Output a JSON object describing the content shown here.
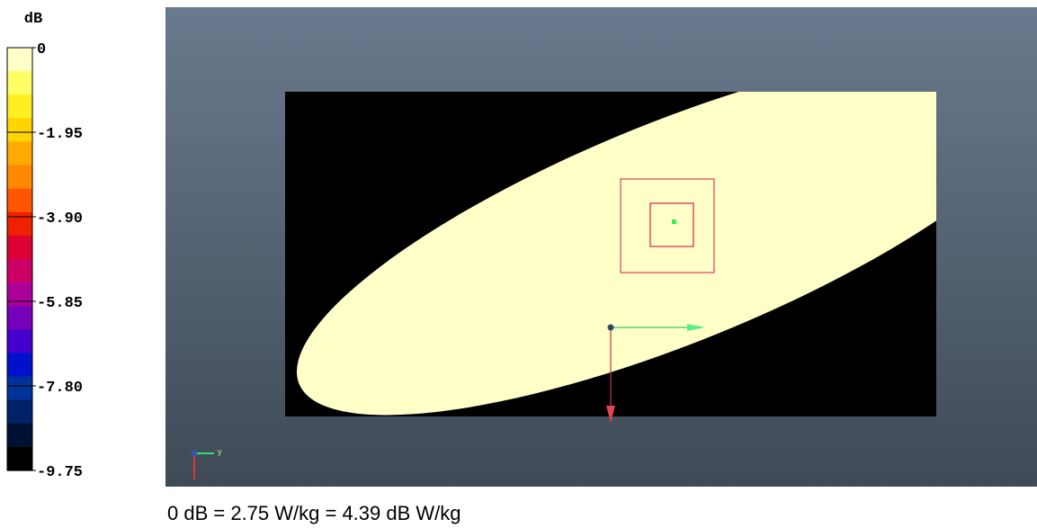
{
  "colorbar": {
    "unit_label": "dB",
    "tick_labels": [
      "0",
      "-1.95",
      "-3.90",
      "-5.85",
      "-7.80",
      "-9.75"
    ],
    "tick_values": [
      0,
      -1.95,
      -3.9,
      -5.85,
      -7.8,
      -9.75
    ],
    "colors_top_to_bottom": [
      "#ffffc8",
      "#ffff64",
      "#ffee22",
      "#ffd400",
      "#ffaa00",
      "#ff8800",
      "#ff5500",
      "#ee2200",
      "#dd0033",
      "#cc0066",
      "#aa0099",
      "#7700bb",
      "#4400cc",
      "#0011cc",
      "#003399",
      "#002266",
      "#001133",
      "#000000"
    ]
  },
  "chart_data": {
    "type": "heatmap",
    "title": "",
    "xlabel": "",
    "ylabel": "",
    "colorbar_label": "dB",
    "zlim": [
      -9.75,
      0
    ],
    "levels": [
      0,
      -0.54,
      -1.08,
      -1.63,
      -2.17,
      -2.71,
      -3.25,
      -3.79,
      -4.33,
      -4.88,
      -5.42,
      -5.96,
      -6.5,
      -7.04,
      -7.58,
      -8.13,
      -8.67,
      -9.21,
      -9.75
    ],
    "peak_value_db": 0
  },
  "axes_gizmo": {
    "y_label": "y"
  },
  "caption": "0 dB = 2.75 W/kg = 4.39 dB W/kg",
  "colors": {
    "background_top": "#6a7a8e",
    "background_bottom": "#3f4a56",
    "plate": "#000000"
  }
}
